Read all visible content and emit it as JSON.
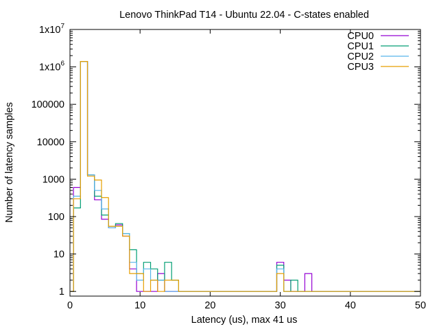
{
  "chart_data": {
    "type": "line",
    "style": "step-histogram",
    "title": "Lenovo ThinkPad T14 - Ubuntu 22.04 - C-states enabled",
    "xlabel": "Latency (us), max 41 us",
    "ylabel": "Number of latency samples",
    "xlim": [
      0,
      50
    ],
    "ylim": [
      0.75,
      10000000
    ],
    "ylog": true,
    "grid": false,
    "legend_position": "top-right",
    "x_ticks": [
      "0",
      "10",
      "20",
      "30",
      "40",
      "50"
    ],
    "y_ticks": [
      {
        "value": 1,
        "label": "1",
        "sup": ""
      },
      {
        "value": 10,
        "label": "10",
        "sup": ""
      },
      {
        "value": 100,
        "label": "100",
        "sup": ""
      },
      {
        "value": 1000,
        "label": "1000",
        "sup": ""
      },
      {
        "value": 10000,
        "label": "10000",
        "sup": ""
      },
      {
        "value": 100000,
        "label": "100000",
        "sup": ""
      },
      {
        "value": 1000000,
        "label": "1x10",
        "sup": "6"
      },
      {
        "value": 10000000,
        "label": "1x10",
        "sup": "7"
      }
    ],
    "series": [
      {
        "name": "CPU0",
        "color": "#9400d3",
        "points": [
          [
            0,
            1
          ],
          [
            1,
            600
          ],
          [
            2,
            1400000
          ],
          [
            3,
            1300
          ],
          [
            4,
            280
          ],
          [
            5,
            85
          ],
          [
            6,
            50
          ],
          [
            7,
            60
          ],
          [
            8,
            30
          ],
          [
            9,
            4
          ],
          [
            10,
            1
          ],
          [
            11,
            1
          ],
          [
            12,
            1
          ],
          [
            13,
            3
          ],
          [
            14,
            1
          ],
          [
            15,
            1
          ],
          [
            16,
            1
          ],
          [
            17,
            1
          ],
          [
            18,
            1
          ],
          [
            19,
            1
          ],
          [
            20,
            1
          ],
          [
            21,
            1
          ],
          [
            22,
            1
          ],
          [
            23,
            1
          ],
          [
            24,
            1
          ],
          [
            25,
            1
          ],
          [
            26,
            1
          ],
          [
            27,
            1
          ],
          [
            28,
            1
          ],
          [
            29,
            1
          ],
          [
            30,
            6
          ],
          [
            31,
            2
          ],
          [
            32,
            1
          ],
          [
            33,
            1
          ],
          [
            34,
            3
          ],
          [
            35,
            1
          ],
          [
            36,
            1
          ],
          [
            37,
            1
          ],
          [
            38,
            1
          ],
          [
            39,
            1
          ],
          [
            40,
            1
          ],
          [
            41,
            1
          ]
        ]
      },
      {
        "name": "CPU1",
        "color": "#009e73",
        "points": [
          [
            0,
            1
          ],
          [
            1,
            170
          ],
          [
            2,
            1400000
          ],
          [
            3,
            1300
          ],
          [
            4,
            350
          ],
          [
            5,
            110
          ],
          [
            6,
            55
          ],
          [
            7,
            65
          ],
          [
            8,
            35
          ],
          [
            9,
            13
          ],
          [
            10,
            3
          ],
          [
            11,
            6
          ],
          [
            12,
            4
          ],
          [
            13,
            2
          ],
          [
            14,
            6
          ],
          [
            15,
            2
          ],
          [
            16,
            1
          ],
          [
            17,
            1
          ],
          [
            18,
            1
          ],
          [
            19,
            1
          ],
          [
            20,
            1
          ],
          [
            21,
            1
          ],
          [
            22,
            1
          ],
          [
            23,
            1
          ],
          [
            24,
            1
          ],
          [
            25,
            1
          ],
          [
            26,
            1
          ],
          [
            27,
            1
          ],
          [
            28,
            1
          ],
          [
            29,
            1
          ],
          [
            30,
            5
          ],
          [
            31,
            1
          ],
          [
            32,
            2
          ],
          [
            33,
            1
          ],
          [
            34,
            1
          ],
          [
            35,
            1
          ],
          [
            36,
            1
          ]
        ]
      },
      {
        "name": "CPU2",
        "color": "#56b4e9",
        "points": [
          [
            0,
            1
          ],
          [
            1,
            350
          ],
          [
            2,
            1400000
          ],
          [
            3,
            1300
          ],
          [
            4,
            500
          ],
          [
            5,
            160
          ],
          [
            6,
            50
          ],
          [
            7,
            55
          ],
          [
            8,
            35
          ],
          [
            9,
            6
          ],
          [
            10,
            2
          ],
          [
            11,
            4
          ],
          [
            12,
            2
          ],
          [
            13,
            2
          ],
          [
            14,
            1
          ],
          [
            15,
            1
          ],
          [
            16,
            1
          ],
          [
            17,
            1
          ],
          [
            18,
            1
          ],
          [
            19,
            1
          ],
          [
            20,
            1
          ],
          [
            21,
            1
          ],
          [
            22,
            1
          ],
          [
            23,
            1
          ],
          [
            24,
            1
          ],
          [
            25,
            1
          ],
          [
            26,
            1
          ],
          [
            27,
            1
          ],
          [
            28,
            1
          ],
          [
            29,
            1
          ],
          [
            30,
            4
          ],
          [
            31,
            1
          ],
          [
            32,
            1
          ],
          [
            33,
            1
          ],
          [
            34,
            1
          ],
          [
            35,
            1
          ],
          [
            36,
            1
          ]
        ]
      },
      {
        "name": "CPU3",
        "color": "#e69f00",
        "points": [
          [
            0,
            1
          ],
          [
            1,
            300
          ],
          [
            2,
            1400000
          ],
          [
            3,
            1200
          ],
          [
            4,
            950
          ],
          [
            5,
            320
          ],
          [
            6,
            55
          ],
          [
            7,
            55
          ],
          [
            8,
            30
          ],
          [
            9,
            3
          ],
          [
            10,
            3
          ],
          [
            11,
            1
          ],
          [
            12,
            2
          ],
          [
            13,
            1
          ],
          [
            14,
            2
          ],
          [
            15,
            2
          ],
          [
            16,
            1
          ],
          [
            17,
            1
          ],
          [
            18,
            1
          ],
          [
            19,
            1
          ],
          [
            20,
            1
          ],
          [
            21,
            1
          ],
          [
            22,
            1
          ],
          [
            23,
            1
          ],
          [
            24,
            1
          ],
          [
            25,
            1
          ],
          [
            26,
            1
          ],
          [
            27,
            1
          ],
          [
            28,
            1
          ],
          [
            29,
            1
          ],
          [
            30,
            3
          ],
          [
            31,
            1
          ],
          [
            32,
            1
          ],
          [
            33,
            1
          ]
        ]
      }
    ]
  }
}
